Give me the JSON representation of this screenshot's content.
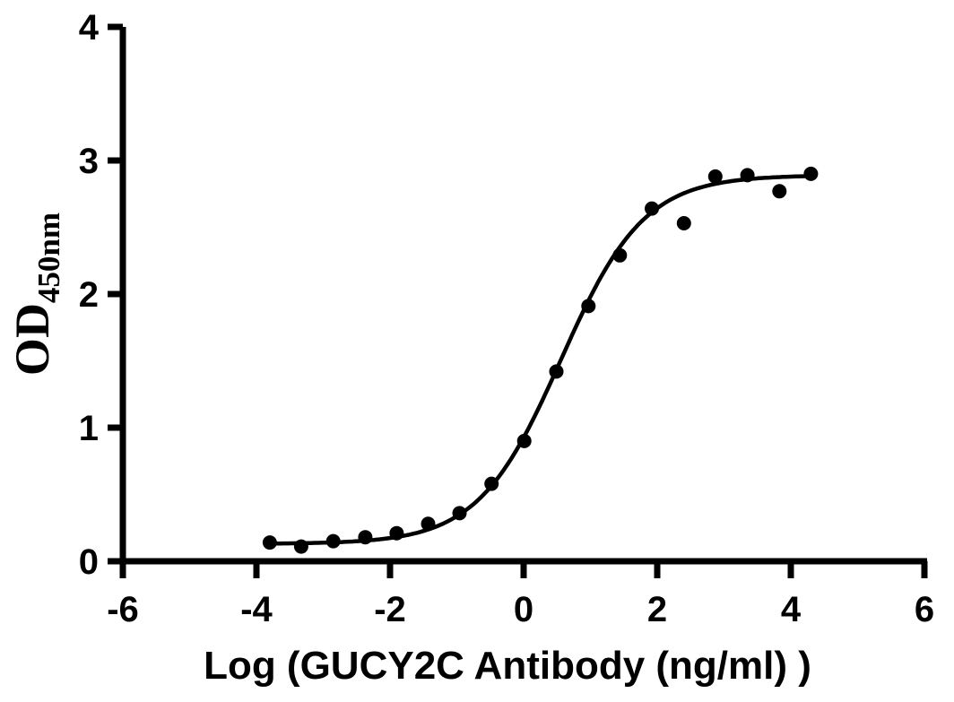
{
  "figure": {
    "background": "#ffffff"
  },
  "chart_data": {
    "type": "scatter",
    "title": "",
    "xlabel": "Log（GUCY2C Antibody（ng/ml）　）",
    "ylabel": "OD",
    "ylabel_subscript": "450nm",
    "xlim": [
      -6,
      6
    ],
    "ylim": [
      0,
      4
    ],
    "x_ticks": [
      -6,
      -4,
      -2,
      0,
      2,
      4,
      6
    ],
    "y_ticks": [
      0,
      1,
      2,
      3,
      4
    ],
    "grid": false,
    "legend_position": "none",
    "axis_color": "#000000",
    "series": [
      {
        "marker": "filled-circle",
        "marker_color": "#000000",
        "points": [
          {
            "x": -3.8,
            "y": 0.14
          },
          {
            "x": -3.33,
            "y": 0.11
          },
          {
            "x": -2.85,
            "y": 0.15
          },
          {
            "x": -2.37,
            "y": 0.18
          },
          {
            "x": -1.9,
            "y": 0.21
          },
          {
            "x": -1.43,
            "y": 0.28
          },
          {
            "x": -0.96,
            "y": 0.36
          },
          {
            "x": -0.48,
            "y": 0.58
          },
          {
            "x": 0.01,
            "y": 0.9
          },
          {
            "x": 0.49,
            "y": 1.42
          },
          {
            "x": 0.97,
            "y": 1.91
          },
          {
            "x": 1.44,
            "y": 2.29
          },
          {
            "x": 1.92,
            "y": 2.64
          },
          {
            "x": 2.4,
            "y": 2.53
          },
          {
            "x": 2.87,
            "y": 2.88
          },
          {
            "x": 3.35,
            "y": 2.89
          },
          {
            "x": 3.83,
            "y": 2.77
          },
          {
            "x": 4.3,
            "y": 2.9
          }
        ]
      }
    ],
    "curve_fit": {
      "model": "4PL",
      "bottom": 0.13,
      "top": 2.89,
      "log_ec50": 0.56,
      "hill_slope": 0.7,
      "x_start": -3.8,
      "x_end": 4.23,
      "color": "#000000"
    }
  }
}
